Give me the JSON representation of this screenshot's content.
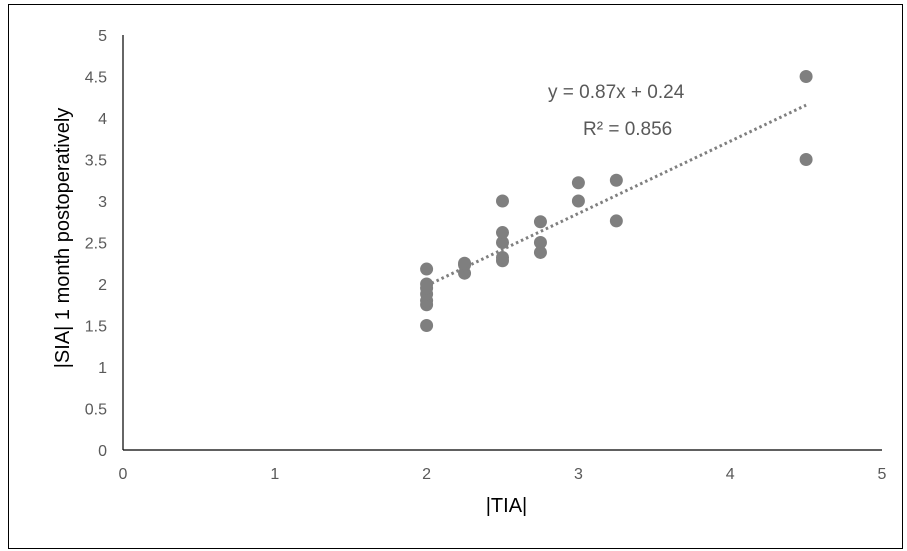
{
  "chart_data": {
    "type": "scatter",
    "xlabel": "|TIA|",
    "ylabel": "|SIA| 1 month postoperatively",
    "xlim": [
      0,
      5
    ],
    "ylim": [
      0,
      5
    ],
    "x_ticks": [
      "0",
      "1",
      "2",
      "3",
      "4",
      "5"
    ],
    "y_ticks": [
      "0",
      "0.5",
      "1",
      "1.5",
      "2",
      "2.5",
      "3",
      "3.5",
      "4",
      "4.5",
      "5"
    ],
    "grid": false,
    "legend": "none",
    "series": [
      {
        "marker_color": "#7f7f7f",
        "points": [
          {
            "x": 2.0,
            "y": 1.5
          },
          {
            "x": 2.0,
            "y": 1.75
          },
          {
            "x": 2.0,
            "y": 1.8
          },
          {
            "x": 2.0,
            "y": 1.88
          },
          {
            "x": 2.0,
            "y": 1.95
          },
          {
            "x": 2.0,
            "y": 2.0
          },
          {
            "x": 2.0,
            "y": 2.18
          },
          {
            "x": 2.25,
            "y": 2.13
          },
          {
            "x": 2.25,
            "y": 2.23
          },
          {
            "x": 2.25,
            "y": 2.25
          },
          {
            "x": 2.5,
            "y": 2.28
          },
          {
            "x": 2.5,
            "y": 2.32
          },
          {
            "x": 2.5,
            "y": 2.5
          },
          {
            "x": 2.5,
            "y": 2.62
          },
          {
            "x": 2.5,
            "y": 3.0
          },
          {
            "x": 2.75,
            "y": 2.38
          },
          {
            "x": 2.75,
            "y": 2.5
          },
          {
            "x": 2.75,
            "y": 2.75
          },
          {
            "x": 3.0,
            "y": 3.0
          },
          {
            "x": 3.0,
            "y": 3.22
          },
          {
            "x": 3.25,
            "y": 2.76
          },
          {
            "x": 3.25,
            "y": 3.25
          },
          {
            "x": 4.5,
            "y": 3.5
          },
          {
            "x": 4.5,
            "y": 4.5
          }
        ]
      }
    ],
    "trendline": {
      "type": "linear",
      "style": "dotted",
      "color": "#7f7f7f",
      "slope": 0.87,
      "intercept": 0.24,
      "x_range": [
        2.0,
        4.5
      ],
      "equation_label": "y = 0.87x + 0.24",
      "r2_label": "R² = 0.856"
    }
  }
}
